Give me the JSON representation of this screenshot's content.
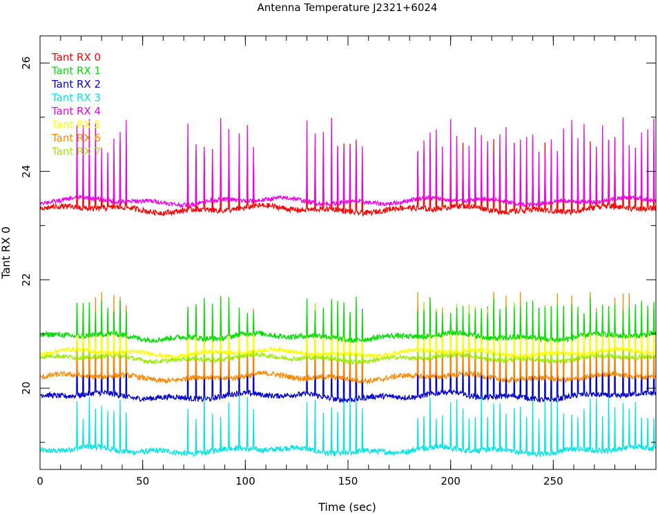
{
  "chart_data": {
    "type": "line",
    "title": "Antenna Temperature J2321+6024",
    "xlabel": "Time (sec)",
    "ylabel": "Tant RX 0",
    "xlim": [
      0,
      300
    ],
    "ylim": [
      18.5,
      26.5
    ],
    "x_ticks": [
      0,
      50,
      100,
      150,
      200,
      250
    ],
    "y_ticks": [
      20,
      22,
      24,
      26
    ],
    "legend_position": "top-left",
    "grid": false,
    "spike_times": [
      18,
      21,
      24,
      27,
      30,
      33,
      36,
      39,
      42,
      72,
      76,
      80,
      84,
      88,
      92,
      97,
      101,
      104,
      130,
      134,
      138,
      142,
      145,
      148,
      151,
      154,
      157,
      184,
      187,
      190,
      193,
      196,
      200,
      203,
      206,
      209,
      212,
      215,
      218,
      221,
      224,
      227,
      231,
      234,
      237,
      240,
      243,
      246,
      249,
      252,
      255,
      259,
      262,
      265,
      268,
      271,
      274,
      277,
      280,
      284,
      287,
      290,
      293,
      296,
      299
    ],
    "series": [
      {
        "name": "Tant RX 0",
        "color": "#ff0000",
        "baseline": 23.3,
        "noise": 0.05,
        "spike_peak": 24.6
      },
      {
        "name": "Tant RX 1",
        "color": "#00dd00",
        "baseline": 20.95,
        "noise": 0.05,
        "spike_peak": 21.7
      },
      {
        "name": "Tant RX 2",
        "color": "#0000cc",
        "baseline": 19.85,
        "noise": 0.05,
        "spike_peak": 21.5
      },
      {
        "name": "Tant RX 3",
        "color": "#00e5e5",
        "baseline": 18.85,
        "noise": 0.05,
        "spike_peak": 19.9
      },
      {
        "name": "Tant RX 4",
        "color": "#ee00ee",
        "baseline": 23.45,
        "noise": 0.04,
        "spike_peak": 25.0
      },
      {
        "name": "Tant RX 5",
        "color": "#ffff00",
        "baseline": 20.65,
        "noise": 0.04,
        "spike_peak": 21.3
      },
      {
        "name": "Tant RX 6",
        "color": "#ff8800",
        "baseline": 20.2,
        "noise": 0.05,
        "spike_peak": 21.8
      },
      {
        "name": "Tant RX 7",
        "color": "#99ee00",
        "baseline": 20.55,
        "noise": 0.04,
        "spike_peak": 21.6
      }
    ]
  }
}
